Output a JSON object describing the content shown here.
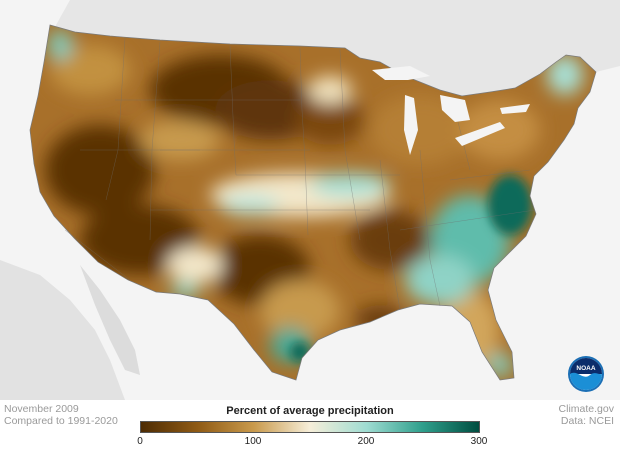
{
  "map": {
    "region": "Contiguous United States",
    "variable": "Percent of average precipitation",
    "colors": {
      "background_land_outside": "#e6e6e6",
      "water": "#f4f4f4",
      "very_dry": "#5a3305",
      "dry": "#8a5612",
      "somewhat_dry": "#c2913f",
      "near_average": "#f3e7c9",
      "wetter": "#7fcfc2",
      "very_wet": "#0d6b5a"
    }
  },
  "notes": {
    "date": "November 2009",
    "baseline": "Compared to 1991-2020",
    "credit": "Climate.gov",
    "source": "Data: NCEI"
  },
  "legend": {
    "title": "Percent of average precipitation",
    "ticks": [
      "0",
      "100",
      "200",
      "300"
    ],
    "gradient": [
      "#4d2c04",
      "#8f5a14",
      "#c99a4c",
      "#f6eed9",
      "#9fdcd2",
      "#2f9f8c",
      "#004d40"
    ]
  },
  "logo": {
    "text": "NOAA"
  }
}
